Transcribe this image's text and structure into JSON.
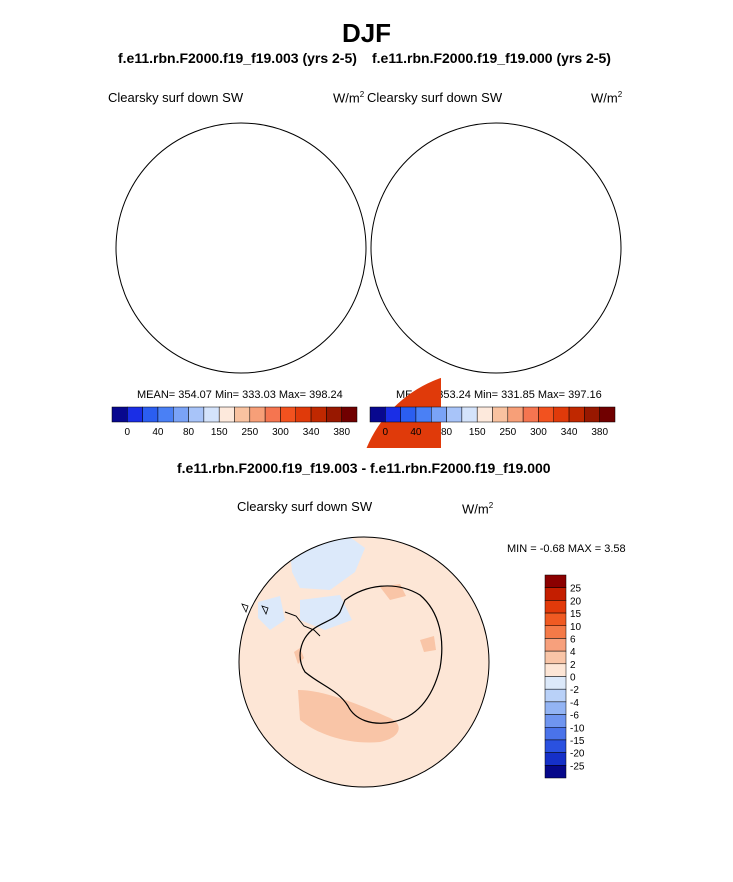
{
  "page": {
    "title": "DJF",
    "left_case": "f.e11.rbn.F2000.f19_f19.003 (yrs 2-5)",
    "right_case": "f.e11.rbn.F2000.f19_f19.000 (yrs 2-5)",
    "diff_title": "f.e11.rbn.F2000.f19_f19.003 - f.e11.rbn.F2000.f19_f19.000"
  },
  "chart_data": [
    {
      "type": "heatmap",
      "projection": "south polar stereographic",
      "variable": "Clearsky surf down SW",
      "units": "W/m",
      "units_exp": "2",
      "stats": "MEAN= 354.07  Min= 333.03  Max= 398.24",
      "mean": 354.07,
      "min": 333.03,
      "max": 398.24,
      "levels": [
        0,
        20,
        40,
        60,
        80,
        120,
        150,
        200,
        250,
        280,
        300,
        320,
        340,
        360,
        380
      ],
      "tick_labels": [
        "0",
        "40",
        "80",
        "150",
        "250",
        "300",
        "340",
        "380"
      ],
      "colors": [
        "#08088f",
        "#1a2ee6",
        "#2b5ef0",
        "#4a80f5",
        "#7aa3f7",
        "#a8c4f9",
        "#d4e3fb",
        "#fde9dc",
        "#f9c2a0",
        "#f79f78",
        "#f57550",
        "#f2521f",
        "#e03a0a",
        "#c02800",
        "#981800",
        "#700000"
      ],
      "legend_position": "bottom"
    },
    {
      "type": "heatmap",
      "projection": "south polar stereographic",
      "variable": "Clearsky surf down SW",
      "units": "W/m",
      "units_exp": "2",
      "stats": "MEAN= 353.24  Min= 331.85  Max= 397.16",
      "mean": 353.24,
      "min": 331.85,
      "max": 397.16,
      "levels": [
        0,
        20,
        40,
        60,
        80,
        120,
        150,
        200,
        250,
        280,
        300,
        320,
        340,
        360,
        380
      ],
      "tick_labels": [
        "0",
        "40",
        "80",
        "150",
        "250",
        "300",
        "340",
        "380"
      ],
      "colors": [
        "#08088f",
        "#1a2ee6",
        "#2b5ef0",
        "#4a80f5",
        "#7aa3f7",
        "#a8c4f9",
        "#d4e3fb",
        "#fde9dc",
        "#f9c2a0",
        "#f79f78",
        "#f57550",
        "#f2521f",
        "#e03a0a",
        "#c02800",
        "#981800",
        "#700000"
      ],
      "legend_position": "bottom"
    },
    {
      "type": "heatmap",
      "projection": "south polar stereographic",
      "variable": "Clearsky surf down SW",
      "units": "W/m",
      "units_exp": "2",
      "stats": "MIN =  -0.68 MAX =   3.58",
      "min": -0.68,
      "max": 3.58,
      "levels": [
        25,
        20,
        15,
        10,
        6,
        4,
        2,
        0,
        -2,
        -4,
        -6,
        -10,
        -15,
        -20,
        -25
      ],
      "tick_labels": [
        "25",
        "20",
        "15",
        "10",
        "6",
        "4",
        "2",
        "0",
        "-2",
        "-4",
        "-6",
        "-10",
        "-15",
        "-20",
        "-25"
      ],
      "colors": [
        "#8b0000",
        "#c41e00",
        "#e23a0a",
        "#f05a22",
        "#f47a48",
        "#f7a07c",
        "#f9c5a7",
        "#fde6d6",
        "#dce9fa",
        "#b9d1f8",
        "#93b4f4",
        "#6f95f0",
        "#4a73ea",
        "#2a51e0",
        "#1530c8",
        "#06088a"
      ],
      "legend_position": "right"
    }
  ]
}
